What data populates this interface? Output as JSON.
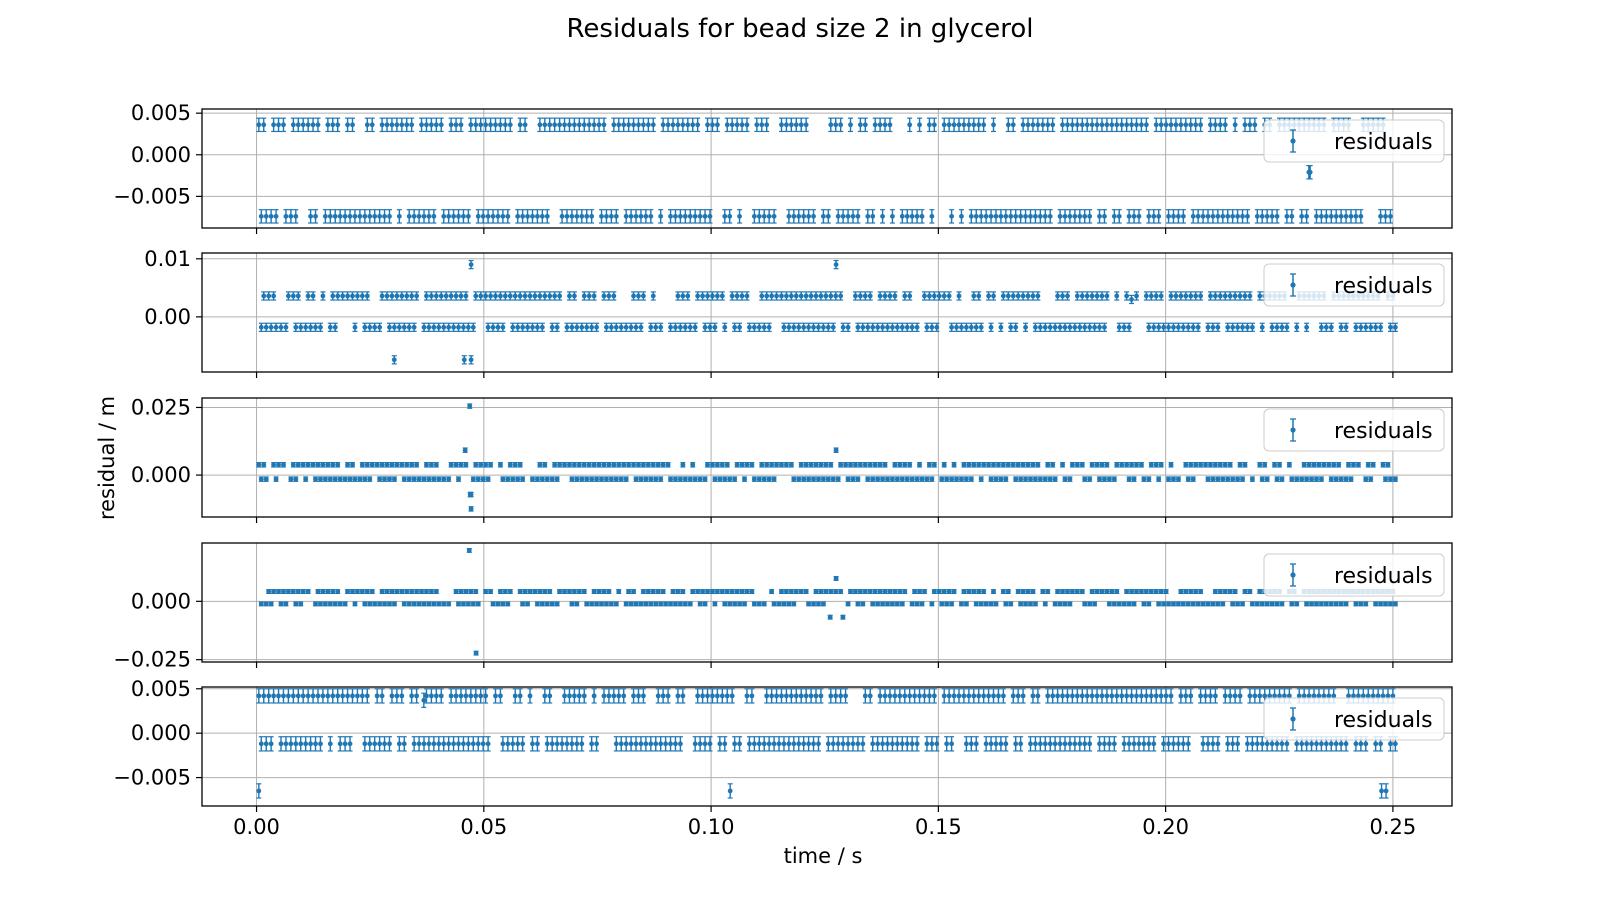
{
  "figure": {
    "title": "Residuals for bead  size 2 in glycerol",
    "ylabel": "residual / m",
    "xlabel": "time / s",
    "series_color": "#1f77b4",
    "grid_color": "#b0b0b0",
    "x_ticks": [
      0.0,
      0.05,
      0.1,
      0.15,
      0.2,
      0.25
    ],
    "x_tick_labels": [
      "0.00",
      "0.05",
      "0.10",
      "0.15",
      "0.20",
      "0.25"
    ]
  },
  "chart_data": [
    {
      "type": "scatter",
      "title": "",
      "xlabel": "time / s",
      "ylabel": "residual / m",
      "xlim": [
        -0.012,
        0.263
      ],
      "ylim": [
        -0.0088,
        0.0055
      ],
      "yticks": [
        -0.005,
        0.0,
        0.005
      ],
      "ytick_labels": [
        "−0.005",
        "0.000",
        "0.005"
      ],
      "grid": true,
      "legend": {
        "position": "upper right",
        "entries": [
          "residuals"
        ]
      },
      "series": [
        {
          "name": "residuals",
          "error_bar": 0.0008,
          "levels": [
            0.0036,
            -0.0074
          ],
          "points": [
            [
              0.2315,
              -0.0021
            ],
            [
              0.2318,
              -0.0021
            ]
          ]
        }
      ]
    },
    {
      "type": "scatter",
      "title": "",
      "xlabel": "time / s",
      "ylabel": "residual / m",
      "xlim": [
        -0.012,
        0.263
      ],
      "ylim": [
        -0.0095,
        0.011
      ],
      "yticks": [
        0.0,
        0.01
      ],
      "ytick_labels": [
        "0.00",
        "0.01"
      ],
      "grid": true,
      "legend": {
        "position": "upper right",
        "entries": [
          "residuals"
        ]
      },
      "series": [
        {
          "name": "residuals",
          "error_bar": 0.0007,
          "levels": [
            0.0036,
            -0.0018
          ],
          "points": [
            [
              0.0303,
              -0.0074
            ],
            [
              0.0457,
              -0.0074
            ],
            [
              0.0472,
              -0.0074
            ],
            [
              0.0472,
              0.009
            ],
            [
              0.1275,
              0.009
            ],
            [
              0.1925,
              0.003
            ]
          ]
        }
      ]
    },
    {
      "type": "scatter",
      "title": "",
      "xlabel": "time / s",
      "ylabel": "residual / m",
      "xlim": [
        -0.012,
        0.263
      ],
      "ylim": [
        -0.0155,
        0.0285
      ],
      "yticks": [
        0.0,
        0.025
      ],
      "ytick_labels": [
        "0.000",
        "0.025"
      ],
      "grid": true,
      "legend": {
        "position": "upper right",
        "entries": [
          "residuals"
        ]
      },
      "series": [
        {
          "name": "residuals",
          "error_bar": 0.0008,
          "levels": [
            0.0038,
            -0.0015
          ],
          "points": [
            [
              0.0469,
              0.0255
            ],
            [
              0.0459,
              0.0092
            ],
            [
              0.047,
              -0.0072
            ],
            [
              0.0472,
              -0.0072
            ],
            [
              0.0472,
              -0.0125
            ],
            [
              0.1275,
              0.0092
            ]
          ]
        }
      ]
    },
    {
      "type": "scatter",
      "title": "",
      "xlabel": "time / s",
      "ylabel": "residual / m",
      "xlim": [
        -0.012,
        0.263
      ],
      "ylim": [
        -0.026,
        0.025
      ],
      "yticks": [
        -0.025,
        0.0
      ],
      "ytick_labels": [
        "−0.025",
        "0.000"
      ],
      "grid": true,
      "legend": {
        "position": "upper right",
        "entries": [
          "residuals"
        ]
      },
      "series": [
        {
          "name": "residuals",
          "error_bar": 0.0008,
          "levels": [
            0.0042,
            -0.0011
          ],
          "points": [
            [
              0.0468,
              0.0218
            ],
            [
              0.0483,
              -0.0222
            ],
            [
              0.1262,
              -0.0068
            ],
            [
              0.1275,
              0.0098
            ],
            [
              0.129,
              -0.0068
            ]
          ]
        }
      ]
    },
    {
      "type": "scatter",
      "title": "",
      "xlabel": "time / s",
      "ylabel": "residual / m",
      "xlim": [
        -0.012,
        0.263
      ],
      "ylim": [
        -0.0082,
        0.0052
      ],
      "yticks": [
        -0.005,
        0.0,
        0.005
      ],
      "ytick_labels": [
        "−0.005",
        "0.000",
        "0.005"
      ],
      "grid": true,
      "legend": {
        "position": "upper right",
        "entries": [
          "residuals"
        ]
      },
      "series": [
        {
          "name": "residuals",
          "error_bar": 0.0008,
          "levels": [
            0.0042,
            -0.0012
          ],
          "points": [
            [
              0.0005,
              -0.0065
            ],
            [
              0.1042,
              -0.0065
            ],
            [
              0.2475,
              -0.0065
            ],
            [
              0.2485,
              -0.0065
            ],
            [
              0.0368,
              0.0037
            ]
          ]
        }
      ]
    }
  ]
}
